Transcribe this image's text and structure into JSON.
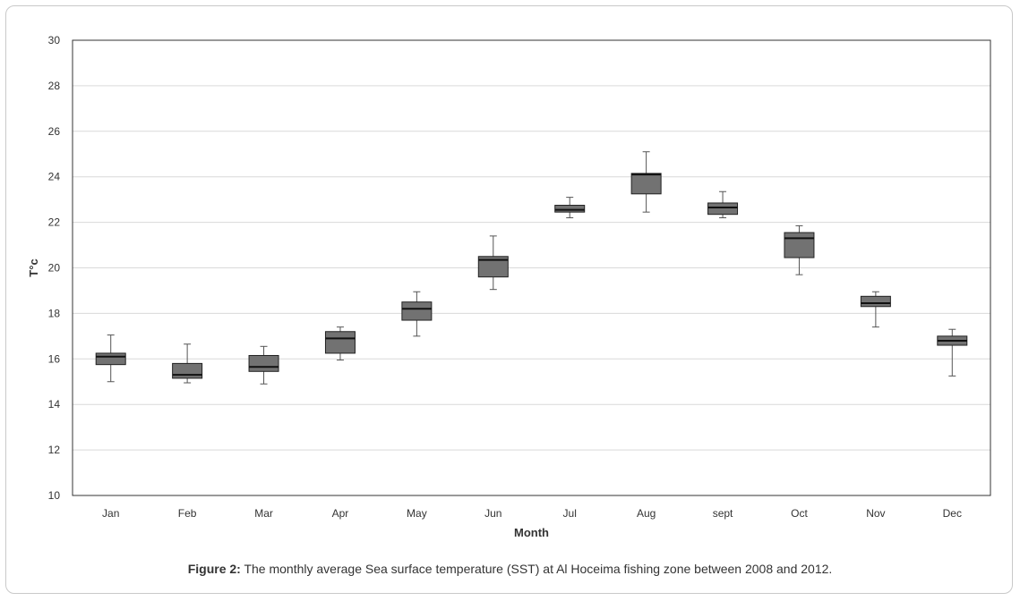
{
  "chart_data": {
    "type": "boxplot",
    "title": "",
    "xlabel": "Month",
    "ylabel": "T°c",
    "ylim": [
      10,
      30
    ],
    "yticks": [
      10,
      12,
      14,
      16,
      18,
      20,
      22,
      24,
      26,
      28,
      30
    ],
    "grid": true,
    "categories": [
      "Jan",
      "Feb",
      "Mar",
      "Apr",
      "May",
      "Jun",
      "Jul",
      "Aug",
      "sept",
      "Oct",
      "Nov",
      "Dec"
    ],
    "boxes": [
      {
        "min": 15.0,
        "q1": 15.75,
        "median": 16.1,
        "q3": 16.25,
        "max": 17.05
      },
      {
        "min": 14.95,
        "q1": 15.15,
        "median": 15.3,
        "q3": 15.8,
        "max": 16.65
      },
      {
        "min": 14.9,
        "q1": 15.45,
        "median": 15.65,
        "q3": 16.15,
        "max": 16.55
      },
      {
        "min": 15.95,
        "q1": 16.25,
        "median": 16.9,
        "q3": 17.2,
        "max": 17.4
      },
      {
        "min": 17.0,
        "q1": 17.7,
        "median": 18.2,
        "q3": 18.5,
        "max": 18.95
      },
      {
        "min": 19.05,
        "q1": 19.6,
        "median": 20.35,
        "q3": 20.5,
        "max": 21.4
      },
      {
        "min": 22.2,
        "q1": 22.45,
        "median": 22.55,
        "q3": 22.75,
        "max": 23.1
      },
      {
        "min": 22.45,
        "q1": 23.25,
        "median": 24.1,
        "q3": 24.15,
        "max": 25.1
      },
      {
        "min": 22.2,
        "q1": 22.35,
        "median": 22.65,
        "q3": 22.85,
        "max": 23.35
      },
      {
        "min": 19.7,
        "q1": 20.45,
        "median": 21.3,
        "q3": 21.55,
        "max": 21.85
      },
      {
        "min": 17.4,
        "q1": 18.3,
        "median": 18.45,
        "q3": 18.75,
        "max": 18.95
      },
      {
        "min": 15.25,
        "q1": 16.6,
        "median": 16.8,
        "q3": 17.0,
        "max": 17.3
      }
    ],
    "colors": {
      "box_fill": "#727272",
      "box_stroke": "#222222",
      "whisker": "#555555",
      "grid": "#d9d9d9",
      "axis": "#333333"
    }
  },
  "caption": {
    "label": "Figure 2:",
    "text": " The monthly average Sea surface temperature (SST) at Al Hoceima fishing zone between 2008 and 2012."
  }
}
